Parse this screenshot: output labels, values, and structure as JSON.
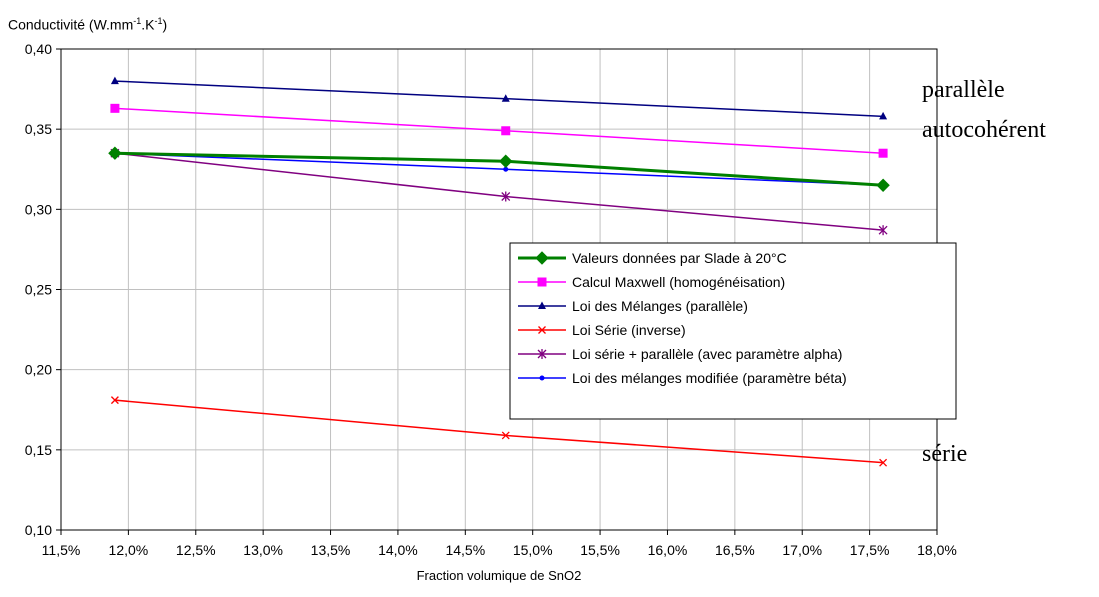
{
  "chart_data": {
    "type": "line",
    "title": "",
    "ylabel": {
      "base": "Conductivité (W.mm",
      "sup1": "-1",
      "mid": ".K",
      "sup2": "-1",
      "end": ")"
    },
    "xlabel": "Fraction volumique de SnO2",
    "x": [
      0.119,
      0.148,
      0.176
    ],
    "xlim": [
      0.115,
      0.18
    ],
    "ylim": [
      0.1,
      0.4
    ],
    "xticks": [
      0.115,
      0.12,
      0.125,
      0.13,
      0.135,
      0.14,
      0.145,
      0.15,
      0.155,
      0.16,
      0.165,
      0.17,
      0.175,
      0.18
    ],
    "xtick_labels": [
      "11,5%",
      "12,0%",
      "12,5%",
      "13,0%",
      "13,5%",
      "14,0%",
      "14,5%",
      "15,0%",
      "15,5%",
      "16,0%",
      "16,5%",
      "17,0%",
      "17,5%",
      "18,0%"
    ],
    "yticks": [
      0.1,
      0.15,
      0.2,
      0.25,
      0.3,
      0.35,
      0.4
    ],
    "ytick_labels": [
      "0,10",
      "0,15",
      "0,20",
      "0,25",
      "0,30",
      "0,35",
      "0,40"
    ],
    "grid": true,
    "legend_position": "center-right",
    "series": [
      {
        "name": "Valeurs données par Slade à 20°C",
        "values": [
          0.335,
          0.33,
          0.315
        ],
        "color": "#008000",
        "marker": "diamond",
        "width": 3
      },
      {
        "name": "Calcul Maxwell (homogénéisation)",
        "values": [
          0.363,
          0.349,
          0.335
        ],
        "color": "#ff00ff",
        "marker": "square",
        "width": 1.5
      },
      {
        "name": "Loi des Mélanges (parallèle)",
        "values": [
          0.38,
          0.369,
          0.358
        ],
        "color": "#000080",
        "marker": "triangle",
        "width": 1.5
      },
      {
        "name": "Loi Série (inverse)",
        "values": [
          0.181,
          0.159,
          0.142
        ],
        "color": "#ff0000",
        "marker": "x",
        "width": 1.5
      },
      {
        "name": "Loi série + parallèle (avec paramètre alpha)",
        "values": [
          0.335,
          0.308,
          0.287
        ],
        "color": "#800080",
        "marker": "star",
        "width": 1.5
      },
      {
        "name": "Loi des mélanges modifiée (paramètre béta)",
        "values": [
          0.335,
          0.325,
          0.315
        ],
        "color": "#0000ff",
        "marker": "dot",
        "width": 1.5
      }
    ],
    "annotations": [
      {
        "text": "parallèle",
        "y": 0.375
      },
      {
        "text": "autocohérent",
        "y": 0.35
      },
      {
        "text": "série",
        "y": 0.148
      }
    ]
  }
}
